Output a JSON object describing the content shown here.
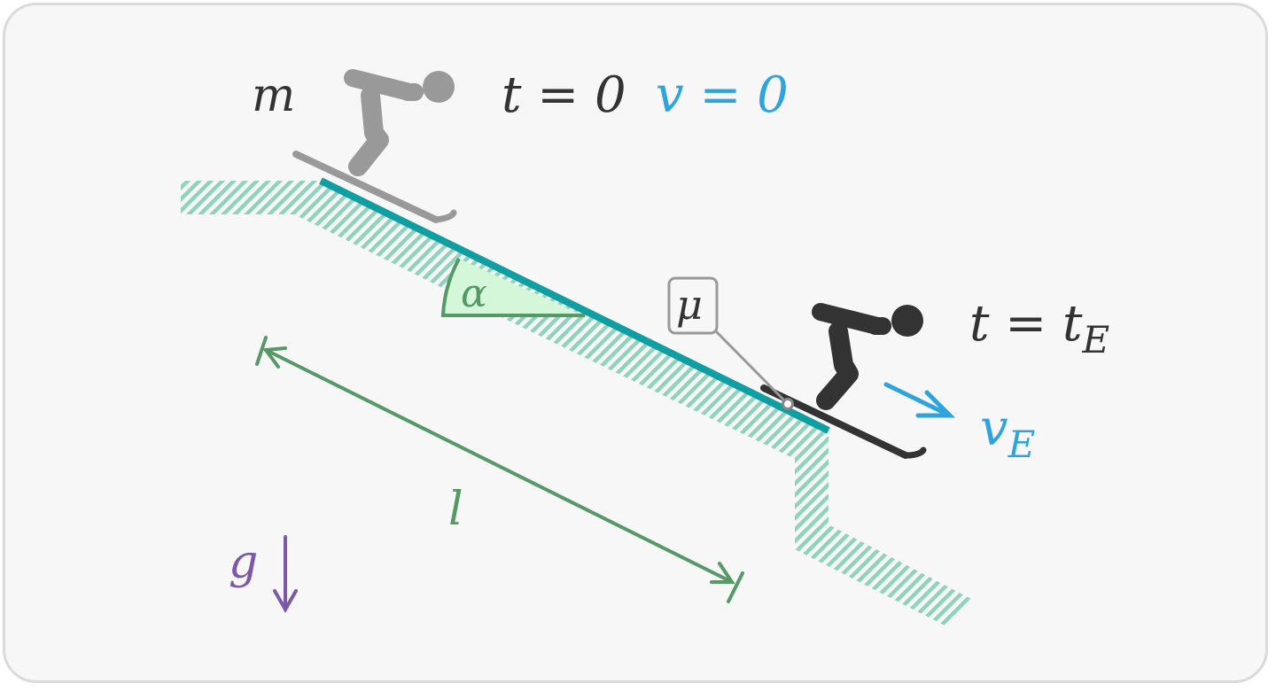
{
  "labels": {
    "mass": "m",
    "t_start": "t = 0",
    "v_start": "v = 0",
    "friction": "μ",
    "alpha": "α",
    "t_end_main": "t = t",
    "t_end_sub": "E",
    "v_end_main": "v",
    "v_end_sub": "E",
    "length": "l",
    "gravity": "g"
  },
  "colors": {
    "background": "#f7f7f7",
    "frame": "#dadada",
    "hatch": "#8fd3bd",
    "slope": "#0f9ea2",
    "angle_fill": "#d4f7d9",
    "green": "#559966",
    "blue": "#2fa3dc",
    "purple": "#7b58a8",
    "skier_start": "#999999",
    "skier_end": "#333333",
    "text": "#333333"
  }
}
